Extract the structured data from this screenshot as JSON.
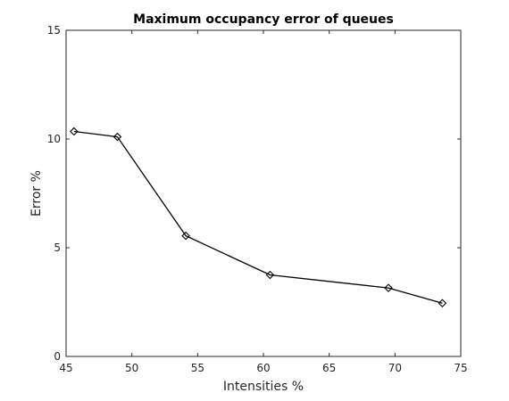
{
  "chart_data": {
    "type": "line",
    "title": "Maximum occupancy error of queues",
    "xlabel": "Intensities %",
    "ylabel": "Error %",
    "xlim": [
      45,
      75
    ],
    "ylim": [
      0,
      15
    ],
    "xticks": [
      "45",
      "50",
      "55",
      "60",
      "65",
      "70",
      "75"
    ],
    "yticks": [
      "0",
      "5",
      "10",
      "15"
    ],
    "grid": false,
    "legend": "none",
    "series": [
      {
        "color": "#000000",
        "marker": "diamond",
        "x": [
          45.6,
          48.9,
          54.1,
          60.5,
          69.5,
          73.6
        ],
        "y": [
          10.35,
          10.1,
          5.55,
          3.75,
          3.15,
          2.45
        ]
      }
    ]
  }
}
